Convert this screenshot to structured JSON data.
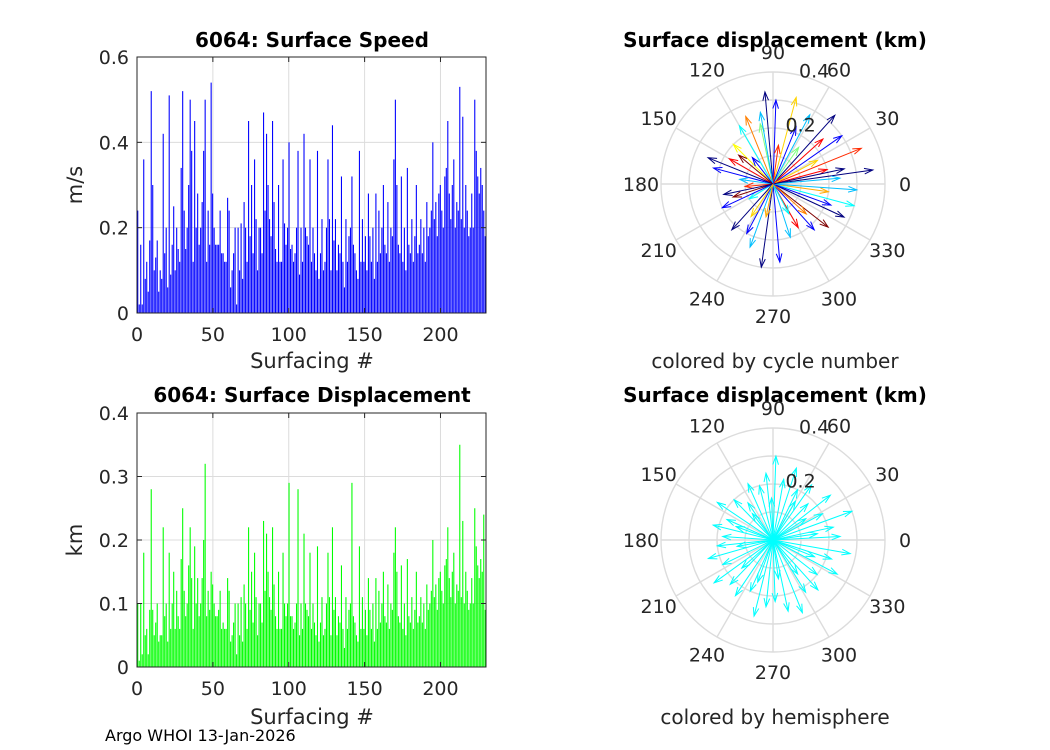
{
  "footer": "Argo WHOI 13-Jan-2026",
  "colors": {
    "speed": "#0000ff",
    "displacement": "#00ff00",
    "hemisphere": "#00ffff",
    "grid": "#dcdcdc",
    "axis": "#262626"
  },
  "chart_data": [
    {
      "id": "speed",
      "type": "bar",
      "title": "6064: Surface Speed",
      "xlabel": "Surfacing #",
      "ylabel": "m/s",
      "xlim": [
        0,
        230
      ],
      "ylim": [
        0,
        0.6
      ],
      "xticks": [
        0,
        50,
        100,
        150,
        200
      ],
      "yticks": [
        0,
        0.2,
        0.4,
        0.6
      ],
      "yticklabels": [
        "0",
        "0.2",
        "0.4",
        "0.6"
      ],
      "grid": true,
      "color": "#0000ff",
      "values": [
        0.24,
        0.02,
        0.16,
        0.02,
        0.36,
        0.08,
        0.12,
        0.05,
        0.17,
        0.52,
        0.3,
        0.1,
        0.13,
        0.17,
        0.05,
        0.1,
        0.08,
        0.42,
        0.14,
        0.2,
        0.06,
        0.51,
        0.09,
        0.16,
        0.25,
        0.1,
        0.2,
        0.15,
        0.12,
        0.34,
        0.52,
        0.24,
        0.15,
        0.2,
        0.3,
        0.5,
        0.38,
        0.12,
        0.45,
        0.2,
        0.28,
        0.16,
        0.2,
        0.26,
        0.38,
        0.5,
        0.12,
        0.24,
        0.16,
        0.54,
        0.28,
        0.2,
        0.16,
        0.16,
        0.16,
        0.24,
        0.14,
        0.14,
        0.12,
        0.12,
        0.27,
        0.24,
        0.06,
        0.1,
        0.14,
        0.2,
        0.02,
        0.2,
        0.1,
        0.21,
        0.08,
        0.26,
        0.2,
        0.12,
        0.45,
        0.18,
        0.3,
        0.14,
        0.36,
        0.22,
        0.1,
        0.2,
        0.2,
        0.14,
        0.47,
        0.24,
        0.42,
        0.3,
        0.22,
        0.18,
        0.45,
        0.26,
        0.15,
        0.12,
        0.3,
        0.12,
        0.12,
        0.36,
        0.21,
        0.16,
        0.2,
        0.4,
        0.15,
        0.16,
        0.12,
        0.14,
        0.2,
        0.38,
        0.09,
        0.2,
        0.12,
        0.42,
        0.2,
        0.18,
        0.16,
        0.36,
        0.12,
        0.2,
        0.14,
        0.1,
        0.38,
        0.08,
        0.14,
        0.22,
        0.1,
        0.12,
        0.2,
        0.36,
        0.22,
        0.1,
        0.44,
        0.17,
        0.22,
        0.1,
        0.16,
        0.14,
        0.32,
        0.12,
        0.06,
        0.22,
        0.12,
        0.18,
        0.2,
        0.32,
        0.16,
        0.14,
        0.1,
        0.08,
        0.38,
        0.12,
        0.22,
        0.12,
        0.18,
        0.1,
        0.28,
        0.18,
        0.12,
        0.2,
        0.08,
        0.28,
        0.12,
        0.24,
        0.14,
        0.2,
        0.3,
        0.16,
        0.14,
        0.26,
        0.12,
        0.2,
        0.18,
        0.36,
        0.5,
        0.3,
        0.16,
        0.14,
        0.32,
        0.12,
        0.2,
        0.1,
        0.34,
        0.16,
        0.14,
        0.22,
        0.12,
        0.18,
        0.3,
        0.14,
        0.16,
        0.22,
        0.14,
        0.2,
        0.12,
        0.26,
        0.18,
        0.2,
        0.24,
        0.4,
        0.22,
        0.26,
        0.18,
        0.28,
        0.3,
        0.24,
        0.2,
        0.32,
        0.34,
        0.45,
        0.28,
        0.22,
        0.3,
        0.36,
        0.2,
        0.26,
        0.24,
        0.53,
        0.22,
        0.46,
        0.2,
        0.3,
        0.24,
        0.18,
        0.2,
        0.28,
        0.2,
        0.5,
        0.38,
        0.32,
        0.28,
        0.34,
        0.3,
        0.24,
        0.18
      ]
    },
    {
      "id": "displacement",
      "type": "bar",
      "title": "6064: Surface Displacement",
      "xlabel": "Surfacing #",
      "ylabel": "km",
      "xlim": [
        0,
        230
      ],
      "ylim": [
        0,
        0.4
      ],
      "xticks": [
        0,
        50,
        100,
        150,
        200
      ],
      "yticks": [
        0,
        0.1,
        0.2,
        0.3,
        0.4
      ],
      "yticklabels": [
        "0",
        "0.1",
        "0.2",
        "0.3",
        "0.4"
      ],
      "grid": true,
      "color": "#00ff00",
      "values": [
        0.1,
        0.01,
        0.1,
        0.02,
        0.18,
        0.05,
        0.06,
        0.02,
        0.09,
        0.28,
        0.09,
        0.05,
        0.07,
        0.1,
        0.04,
        0.05,
        0.05,
        0.22,
        0.08,
        0.1,
        0.04,
        0.18,
        0.06,
        0.1,
        0.15,
        0.06,
        0.12,
        0.08,
        0.06,
        0.17,
        0.25,
        0.12,
        0.08,
        0.1,
        0.16,
        0.22,
        0.14,
        0.06,
        0.19,
        0.1,
        0.14,
        0.08,
        0.1,
        0.14,
        0.2,
        0.32,
        0.08,
        0.12,
        0.09,
        0.15,
        0.13,
        0.1,
        0.08,
        0.08,
        0.09,
        0.12,
        0.06,
        0.07,
        0.06,
        0.06,
        0.14,
        0.12,
        0.04,
        0.05,
        0.07,
        0.1,
        0.02,
        0.1,
        0.05,
        0.11,
        0.04,
        0.13,
        0.1,
        0.06,
        0.22,
        0.09,
        0.15,
        0.07,
        0.18,
        0.11,
        0.05,
        0.1,
        0.1,
        0.07,
        0.23,
        0.12,
        0.21,
        0.15,
        0.11,
        0.09,
        0.22,
        0.13,
        0.08,
        0.06,
        0.15,
        0.06,
        0.06,
        0.18,
        0.1,
        0.08,
        0.1,
        0.29,
        0.08,
        0.08,
        0.06,
        0.07,
        0.1,
        0.28,
        0.05,
        0.1,
        0.06,
        0.21,
        0.1,
        0.09,
        0.08,
        0.18,
        0.06,
        0.1,
        0.07,
        0.05,
        0.19,
        0.04,
        0.07,
        0.11,
        0.05,
        0.06,
        0.1,
        0.18,
        0.11,
        0.05,
        0.22,
        0.09,
        0.11,
        0.05,
        0.08,
        0.07,
        0.16,
        0.06,
        0.03,
        0.11,
        0.06,
        0.09,
        0.1,
        0.29,
        0.08,
        0.07,
        0.05,
        0.04,
        0.19,
        0.06,
        0.11,
        0.06,
        0.09,
        0.05,
        0.14,
        0.09,
        0.06,
        0.1,
        0.04,
        0.14,
        0.06,
        0.12,
        0.07,
        0.1,
        0.15,
        0.08,
        0.07,
        0.13,
        0.06,
        0.1,
        0.09,
        0.18,
        0.22,
        0.15,
        0.08,
        0.07,
        0.16,
        0.06,
        0.1,
        0.05,
        0.17,
        0.08,
        0.07,
        0.11,
        0.06,
        0.09,
        0.15,
        0.07,
        0.08,
        0.11,
        0.07,
        0.1,
        0.06,
        0.13,
        0.09,
        0.1,
        0.12,
        0.2,
        0.11,
        0.13,
        0.09,
        0.14,
        0.15,
        0.12,
        0.1,
        0.16,
        0.17,
        0.22,
        0.14,
        0.11,
        0.15,
        0.18,
        0.1,
        0.13,
        0.12,
        0.35,
        0.11,
        0.23,
        0.1,
        0.15,
        0.12,
        0.09,
        0.1,
        0.14,
        0.1,
        0.25,
        0.19,
        0.16,
        0.14,
        0.17,
        0.15,
        0.24,
        0.09
      ]
    },
    {
      "id": "polar-cycle",
      "type": "polar-compass",
      "title": "Surface displacement (km)",
      "caption": "colored by cycle number",
      "rlim": [
        0,
        0.4
      ],
      "rticks": [
        0.2,
        0.4
      ],
      "rticklabels": [
        "0.2",
        "0.4"
      ],
      "angle_ticks": [
        0,
        30,
        60,
        90,
        120,
        150,
        180,
        210,
        240,
        270,
        300,
        330
      ],
      "colormap": "jet",
      "vectors": [
        {
          "angle": 8,
          "r": 0.36,
          "color": "#00007f"
        },
        {
          "angle": 22,
          "r": 0.34,
          "color": "#ff2a00"
        },
        {
          "angle": 35,
          "r": 0.3,
          "color": "#0000ff"
        },
        {
          "angle": 48,
          "r": 0.33,
          "color": "#00007f"
        },
        {
          "angle": 62,
          "r": 0.28,
          "color": "#00bfff"
        },
        {
          "angle": 75,
          "r": 0.32,
          "color": "#ffd400"
        },
        {
          "angle": 88,
          "r": 0.3,
          "color": "#0000ff"
        },
        {
          "angle": 95,
          "r": 0.33,
          "color": "#00007f"
        },
        {
          "angle": 102,
          "r": 0.22,
          "color": "#7fff7f"
        },
        {
          "angle": 112,
          "r": 0.26,
          "color": "#ff7f00"
        },
        {
          "angle": 120,
          "r": 0.24,
          "color": "#00ffff"
        },
        {
          "angle": 135,
          "r": 0.2,
          "color": "#ffff00"
        },
        {
          "angle": 150,
          "r": 0.18,
          "color": "#ff0000"
        },
        {
          "angle": 165,
          "r": 0.22,
          "color": "#0000ff"
        },
        {
          "angle": 172,
          "r": 0.12,
          "color": "#00bfff"
        },
        {
          "angle": 185,
          "r": 0.1,
          "color": "#ff2a00"
        },
        {
          "angle": 198,
          "r": 0.15,
          "color": "#7f0000"
        },
        {
          "angle": 212,
          "r": 0.1,
          "color": "#00ffff"
        },
        {
          "angle": 228,
          "r": 0.22,
          "color": "#00007f"
        },
        {
          "angle": 242,
          "r": 0.2,
          "color": "#0000ff"
        },
        {
          "angle": 250,
          "r": 0.24,
          "color": "#00bfff"
        },
        {
          "angle": 262,
          "r": 0.3,
          "color": "#00007f"
        },
        {
          "angle": 275,
          "r": 0.28,
          "color": "#0000ff"
        },
        {
          "angle": 288,
          "r": 0.2,
          "color": "#00bfff"
        },
        {
          "angle": 300,
          "r": 0.18,
          "color": "#ff0000"
        },
        {
          "angle": 312,
          "r": 0.22,
          "color": "#0000ff"
        },
        {
          "angle": 322,
          "r": 0.25,
          "color": "#7f0000"
        },
        {
          "angle": 335,
          "r": 0.28,
          "color": "#00007f"
        },
        {
          "angle": 345,
          "r": 0.3,
          "color": "#00ffff"
        },
        {
          "angle": 352,
          "r": 0.2,
          "color": "#ffaa00"
        },
        {
          "angle": 5,
          "r": 0.24,
          "color": "#00bfff"
        },
        {
          "angle": 15,
          "r": 0.2,
          "color": "#ff0000"
        },
        {
          "angle": 28,
          "r": 0.18,
          "color": "#ffd400"
        },
        {
          "angle": 55,
          "r": 0.16,
          "color": "#7fff7f"
        },
        {
          "angle": 82,
          "r": 0.14,
          "color": "#ff2a00"
        },
        {
          "angle": 128,
          "r": 0.12,
          "color": "#0000ff"
        },
        {
          "angle": 158,
          "r": 0.25,
          "color": "#00007f"
        },
        {
          "angle": 205,
          "r": 0.2,
          "color": "#0000ff"
        },
        {
          "angle": 236,
          "r": 0.14,
          "color": "#ffd400"
        },
        {
          "angle": 298,
          "r": 0.12,
          "color": "#00ffff"
        },
        {
          "angle": 318,
          "r": 0.16,
          "color": "#ff7f00"
        },
        {
          "angle": 340,
          "r": 0.22,
          "color": "#0000ff"
        },
        {
          "angle": 356,
          "r": 0.3,
          "color": "#00bfff"
        },
        {
          "angle": 12,
          "r": 0.26,
          "color": "#00007f"
        },
        {
          "angle": 42,
          "r": 0.24,
          "color": "#ff0000"
        },
        {
          "angle": 68,
          "r": 0.22,
          "color": "#0000ff"
        },
        {
          "angle": 100,
          "r": 0.26,
          "color": "#00bfff"
        },
        {
          "angle": 140,
          "r": 0.16,
          "color": "#7f0000"
        },
        {
          "angle": 192,
          "r": 0.18,
          "color": "#00007f"
        },
        {
          "angle": 258,
          "r": 0.12,
          "color": "#ffaa00"
        }
      ]
    },
    {
      "id": "polar-hemisphere",
      "type": "polar-compass",
      "title": "Surface displacement (km)",
      "caption": "colored by hemisphere",
      "rlim": [
        0,
        0.4
      ],
      "rticks": [
        0.2,
        0.4
      ],
      "rticklabels": [
        "0.2",
        "0.4"
      ],
      "angle_ticks": [
        0,
        30,
        60,
        90,
        120,
        150,
        180,
        210,
        240,
        270,
        300,
        330
      ],
      "color": "#00ffff",
      "vectors": [
        {
          "angle": 3,
          "r": 0.24,
          "color": "#00ffff"
        },
        {
          "angle": 12,
          "r": 0.22,
          "color": "#00ffff"
        },
        {
          "angle": 20,
          "r": 0.3,
          "color": "#00ffff"
        },
        {
          "angle": 28,
          "r": 0.2,
          "color": "#00ffff"
        },
        {
          "angle": 38,
          "r": 0.26,
          "color": "#00ffff"
        },
        {
          "angle": 46,
          "r": 0.18,
          "color": "#00ffff"
        },
        {
          "angle": 55,
          "r": 0.24,
          "color": "#00ffff"
        },
        {
          "angle": 64,
          "r": 0.2,
          "color": "#00ffff"
        },
        {
          "angle": 72,
          "r": 0.27,
          "color": "#00ffff"
        },
        {
          "angle": 80,
          "r": 0.22,
          "color": "#00ffff"
        },
        {
          "angle": 88,
          "r": 0.3,
          "color": "#00ffff"
        },
        {
          "angle": 96,
          "r": 0.24,
          "color": "#00ffff"
        },
        {
          "angle": 104,
          "r": 0.2,
          "color": "#00ffff"
        },
        {
          "angle": 114,
          "r": 0.22,
          "color": "#00ffff"
        },
        {
          "angle": 124,
          "r": 0.16,
          "color": "#00ffff"
        },
        {
          "angle": 134,
          "r": 0.2,
          "color": "#00ffff"
        },
        {
          "angle": 146,
          "r": 0.24,
          "color": "#00ffff"
        },
        {
          "angle": 156,
          "r": 0.18,
          "color": "#00ffff"
        },
        {
          "angle": 166,
          "r": 0.22,
          "color": "#00ffff"
        },
        {
          "angle": 176,
          "r": 0.18,
          "color": "#00ffff"
        },
        {
          "angle": 186,
          "r": 0.2,
          "color": "#00ffff"
        },
        {
          "angle": 196,
          "r": 0.24,
          "color": "#00ffff"
        },
        {
          "angle": 206,
          "r": 0.2,
          "color": "#00ffff"
        },
        {
          "angle": 216,
          "r": 0.26,
          "color": "#00ffff"
        },
        {
          "angle": 226,
          "r": 0.22,
          "color": "#00ffff"
        },
        {
          "angle": 236,
          "r": 0.24,
          "color": "#00ffff"
        },
        {
          "angle": 246,
          "r": 0.2,
          "color": "#00ffff"
        },
        {
          "angle": 256,
          "r": 0.28,
          "color": "#00ffff"
        },
        {
          "angle": 264,
          "r": 0.24,
          "color": "#00ffff"
        },
        {
          "angle": 272,
          "r": 0.22,
          "color": "#00ffff"
        },
        {
          "angle": 282,
          "r": 0.26,
          "color": "#00ffff"
        },
        {
          "angle": 292,
          "r": 0.28,
          "color": "#00ffff"
        },
        {
          "angle": 302,
          "r": 0.22,
          "color": "#00ffff"
        },
        {
          "angle": 312,
          "r": 0.24,
          "color": "#00ffff"
        },
        {
          "angle": 322,
          "r": 0.2,
          "color": "#00ffff"
        },
        {
          "angle": 332,
          "r": 0.26,
          "color": "#00ffff"
        },
        {
          "angle": 342,
          "r": 0.22,
          "color": "#00ffff"
        },
        {
          "angle": 350,
          "r": 0.28,
          "color": "#00ffff"
        },
        {
          "angle": 8,
          "r": 0.16,
          "color": "#00ffff"
        },
        {
          "angle": 33,
          "r": 0.14,
          "color": "#00ffff"
        },
        {
          "angle": 60,
          "r": 0.16,
          "color": "#00ffff"
        },
        {
          "angle": 92,
          "r": 0.15,
          "color": "#00ffff"
        },
        {
          "angle": 128,
          "r": 0.12,
          "color": "#00ffff"
        },
        {
          "angle": 160,
          "r": 0.14,
          "color": "#00ffff"
        },
        {
          "angle": 190,
          "r": 0.13,
          "color": "#00ffff"
        },
        {
          "angle": 222,
          "r": 0.15,
          "color": "#00ffff"
        },
        {
          "angle": 250,
          "r": 0.16,
          "color": "#00ffff"
        },
        {
          "angle": 278,
          "r": 0.14,
          "color": "#00ffff"
        },
        {
          "angle": 306,
          "r": 0.15,
          "color": "#00ffff"
        },
        {
          "angle": 338,
          "r": 0.16,
          "color": "#00ffff"
        }
      ]
    }
  ]
}
